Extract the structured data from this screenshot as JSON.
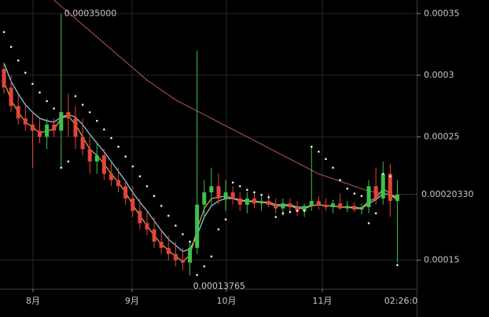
{
  "chart_data": {
    "type": "candlestick",
    "xlim": [
      -0.55,
      57.7
    ],
    "ylim": [
      0.0001268,
      0.000361
    ],
    "xticks": [
      {
        "value": 4.07,
        "label": "8月"
      },
      {
        "value": 17.9,
        "label": "9月"
      },
      {
        "value": 31.1,
        "label": "10月"
      },
      {
        "value": 44.5,
        "label": "11月"
      }
    ],
    "yticks": [
      0.00015,
      0.00025,
      0.0003,
      0.00035
    ],
    "grid": true,
    "up_color": "#3cc24c",
    "down_color": "#e4443a",
    "countdown": "02:26:0",
    "candles": {
      "open": [
        0.000305,
        0.00029,
        0.000275,
        0.000265,
        0.00026,
        0.000255,
        0.00025,
        0.00026,
        0.000255,
        0.00027,
        0.000265,
        0.00025,
        0.00024,
        0.00023,
        0.000235,
        0.00022,
        0.000215,
        0.00021,
        0.0002,
        0.00019,
        0.00018,
        0.000175,
        0.000165,
        0.00016,
        0.000155,
        0.00015,
        0.000148,
        0.00016,
        0.000195,
        0.000205,
        0.00021,
        0.0002,
        0.000205,
        0.0002,
        0.000195,
        0.0002,
        0.000196,
        0.000198,
        0.000195,
        0.000192,
        0.000196,
        0.000193,
        0.00019,
        0.000194,
        0.000198,
        0.000195,
        0.000193,
        0.000196,
        0.000192,
        0.000194,
        0.000191,
        0.000193,
        0.00021,
        0.0002,
        0.00022,
        0.000198
      ],
      "high": [
        0.00031,
        0.0003,
        0.000285,
        0.000275,
        0.00027,
        0.000265,
        0.000265,
        0.000265,
        0.00035,
        0.000285,
        0.000275,
        0.000265,
        0.00025,
        0.000245,
        0.00024,
        0.00023,
        0.000225,
        0.000215,
        0.00021,
        0.0002,
        0.00019,
        0.000185,
        0.000175,
        0.00017,
        0.000165,
        0.00016,
        0.000165,
        0.00032,
        0.000215,
        0.000225,
        0.00022,
        0.000215,
        0.00021,
        0.000205,
        0.000205,
        0.000205,
        0.000202,
        0.000204,
        0.0002,
        0.0002,
        0.0002,
        0.000198,
        0.000196,
        0.000242,
        0.000202,
        0.0002,
        0.000199,
        0.000204,
        0.000198,
        0.000197,
        0.000196,
        0.000215,
        0.000225,
        0.00023,
        0.000228,
        0.000215
      ],
      "low": [
        0.000285,
        0.00027,
        0.00026,
        0.000255,
        0.000225,
        0.000245,
        0.00024,
        0.00025,
        0.000225,
        0.00025,
        0.00024,
        0.000235,
        0.00022,
        0.00022,
        0.000215,
        0.00021,
        0.000205,
        0.000195,
        0.000185,
        0.000175,
        0.00017,
        0.00016,
        0.000155,
        0.00015,
        0.000145,
        0.000142,
        0.00013765,
        0.000155,
        0.000185,
        0.000195,
        0.000195,
        0.00019,
        0.000195,
        0.00019,
        0.000188,
        0.000192,
        0.00019,
        0.000193,
        0.000188,
        0.000186,
        0.000189,
        0.000186,
        0.000185,
        0.00019,
        0.000191,
        0.00019,
        0.000188,
        0.000191,
        0.000189,
        0.000189,
        0.000187,
        0.000188,
        0.000195,
        0.000195,
        0.000185,
        0.000148
      ],
      "close": [
        0.00029,
        0.000275,
        0.000265,
        0.00026,
        0.000255,
        0.00025,
        0.00026,
        0.000255,
        0.00027,
        0.000265,
        0.00025,
        0.00024,
        0.00023,
        0.000235,
        0.00022,
        0.000215,
        0.00021,
        0.0002,
        0.00019,
        0.00018,
        0.000175,
        0.000165,
        0.00016,
        0.000155,
        0.00015,
        0.000148,
        0.00016,
        0.000195,
        0.000205,
        0.00021,
        0.0002,
        0.000205,
        0.0002,
        0.000195,
        0.0002,
        0.000196,
        0.000198,
        0.000195,
        0.000192,
        0.000196,
        0.000193,
        0.00019,
        0.000194,
        0.000198,
        0.000195,
        0.000193,
        0.000196,
        0.000192,
        0.000194,
        0.000191,
        0.000193,
        0.00021,
        0.0002,
        0.00022,
        0.000198,
        0.0002033
      ]
    },
    "lines": [
      {
        "color": "#9a4a4a",
        "values": [
          null,
          null,
          null,
          null,
          null,
          null,
          null,
          0.000361,
          0.000356,
          0.000351,
          0.000346,
          0.000341,
          0.000336,
          0.000331,
          0.000326,
          0.000321,
          0.000316,
          0.000311,
          0.000306,
          0.000301,
          0.000296,
          0.000292,
          0.000288,
          0.000284,
          0.00028,
          0.000277,
          0.000274,
          0.000271,
          0.000268,
          0.000265,
          0.000262,
          0.000259,
          0.000256,
          0.000253,
          0.00025,
          0.000247,
          0.000244,
          0.000241,
          0.000238,
          0.000235,
          0.000232,
          0.000229,
          0.000226,
          0.000223,
          0.00022,
          0.000218,
          0.000216,
          0.000214,
          0.000212,
          0.00021,
          0.000208,
          0.000206,
          0.000205,
          0.000204,
          0.000203,
          0.000202
        ]
      },
      {
        "color": "#8fd8e8",
        "values": [
          0.00031,
          0.000295,
          0.000285,
          0.000276,
          0.00027,
          0.000265,
          0.000263,
          0.000262,
          0.000266,
          0.000268,
          0.000266,
          0.00026,
          0.000252,
          0.000245,
          0.000238,
          0.00023,
          0.000222,
          0.000214,
          0.000205,
          0.000197,
          0.00019,
          0.000182,
          0.000174,
          0.000167,
          0.000162,
          0.000157,
          0.000159,
          0.00017,
          0.000185,
          0.000194,
          0.000198,
          0.0002,
          0.0002,
          0.000199,
          0.000198,
          0.000198,
          0.000197,
          0.000197,
          0.000195,
          0.000195,
          0.000195,
          0.000193,
          0.000193,
          0.000194,
          0.000195,
          0.000194,
          0.000194,
          0.000193,
          0.000193,
          0.000193,
          0.000192,
          0.000196,
          0.000199,
          0.000204,
          0.000203,
          0.000199
        ]
      },
      {
        "color": "#e8a548",
        "values": [
          0.000295,
          0.00028,
          0.00027,
          0.000262,
          0.000258,
          0.000253,
          0.000255,
          0.000256,
          0.000265,
          0.000267,
          0.00026,
          0.00025,
          0.00024,
          0.000235,
          0.000228,
          0.00022,
          0.000213,
          0.000205,
          0.000195,
          0.000186,
          0.000178,
          0.00017,
          0.000163,
          0.000158,
          0.000153,
          0.000149,
          0.000154,
          0.000175,
          0.000192,
          0.0002,
          0.000201,
          0.000202,
          0.0002,
          0.000198,
          0.000198,
          0.000197,
          0.000197,
          0.000196,
          0.000194,
          0.000194,
          0.000194,
          0.000192,
          0.000192,
          0.000194,
          0.000195,
          0.000194,
          0.000194,
          0.000193,
          0.000193,
          0.000192,
          0.000192,
          0.000198,
          0.0002,
          0.000208,
          0.000204,
          0.0002
        ]
      }
    ],
    "sar": {
      "color": "#f0f0f0",
      "values": [
        0.000335,
        0.000323,
        0.000312,
        0.000302,
        0.000293,
        0.000286,
        0.000279,
        0.000273,
        0.000225,
        0.00023,
        0.000283,
        0.000276,
        0.00027,
        0.000263,
        0.000256,
        0.000249,
        0.000242,
        0.000234,
        0.000226,
        0.000218,
        0.00021,
        0.000202,
        0.000194,
        0.000186,
        0.000178,
        0.000171,
        0.000165,
        0.000138,
        0.000145,
        0.000153,
        0.000175,
        0.000183,
        0.000213,
        0.00021,
        0.000207,
        0.000205,
        0.000203,
        0.000201,
        0.000185,
        0.000188,
        0.000189,
        0.00019,
        0.00019,
        0.000242,
        0.000238,
        0.000232,
        0.000225,
        0.000215,
        0.000208,
        0.000204,
        0.000202,
        0.00018,
        0.000188,
        0.00022,
        0.000218,
        0.000146
      ]
    },
    "annotations": [
      {
        "value": 0.00035,
        "label": "0.00035000"
      },
      {
        "value": 0.00013765,
        "label": "0.00013765"
      }
    ],
    "last_price": {
      "value": 0.0002033,
      "label": "0.00020330"
    }
  }
}
